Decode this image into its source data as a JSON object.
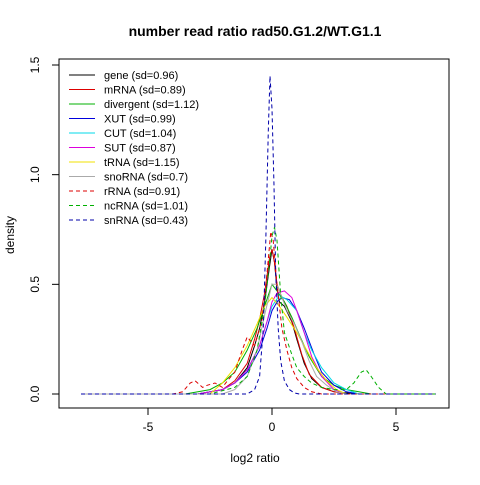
{
  "chart_data": {
    "type": "line",
    "title": "number read ratio rad50.G1.2/WT.G1.1",
    "xlabel": "log2 ratio",
    "ylabel": "density",
    "xlim": [
      -8,
      7
    ],
    "ylim": [
      0,
      1.5
    ],
    "xticks": [
      -5,
      0,
      5
    ],
    "xtick_labels": [
      "-5",
      "0",
      "5"
    ],
    "yticks": [
      0.0,
      0.5,
      1.0,
      1.5
    ],
    "ytick_labels": [
      "0.0",
      "0.5",
      "1.0",
      "1.5"
    ],
    "grid": false,
    "legend_position": "top-left",
    "series": [
      {
        "name": "gene (sd=0.96)",
        "color": "#000000",
        "dashed": false,
        "x": [
          -3.0,
          -2.0,
          -1.5,
          -1.0,
          -0.7,
          -0.5,
          -0.3,
          -0.1,
          0.0,
          0.1,
          0.2,
          0.3,
          0.5,
          0.8,
          1.0,
          1.3,
          1.6,
          2.0,
          2.5,
          3.0,
          3.5
        ],
        "y": [
          0.0,
          0.02,
          0.05,
          0.12,
          0.22,
          0.3,
          0.42,
          0.58,
          0.66,
          0.6,
          0.48,
          0.42,
          0.4,
          0.33,
          0.25,
          0.14,
          0.07,
          0.03,
          0.01,
          0.005,
          0.0
        ]
      },
      {
        "name": "mRNA (sd=0.89)",
        "color": "#dd0000",
        "dashed": false,
        "x": [
          -3.0,
          -2.0,
          -1.5,
          -1.0,
          -0.7,
          -0.5,
          -0.3,
          -0.1,
          0.0,
          0.1,
          0.2,
          0.4,
          0.6,
          0.9,
          1.2,
          1.5,
          2.0,
          2.5,
          3.0
        ],
        "y": [
          0.0,
          0.02,
          0.06,
          0.14,
          0.25,
          0.34,
          0.46,
          0.62,
          0.66,
          0.6,
          0.5,
          0.44,
          0.4,
          0.3,
          0.18,
          0.09,
          0.03,
          0.01,
          0.0
        ]
      },
      {
        "name": "divergent (sd=1.12)",
        "color": "#00b000",
        "dashed": false,
        "x": [
          -3.5,
          -2.5,
          -2.0,
          -1.5,
          -1.0,
          -0.6,
          -0.3,
          0.0,
          0.2,
          0.5,
          0.8,
          1.1,
          1.5,
          2.0,
          2.5,
          3.0,
          3.5,
          4.0
        ],
        "y": [
          0.0,
          0.02,
          0.05,
          0.1,
          0.2,
          0.3,
          0.4,
          0.5,
          0.47,
          0.42,
          0.35,
          0.27,
          0.17,
          0.08,
          0.04,
          0.02,
          0.01,
          0.0
        ]
      },
      {
        "name": "XUT (sd=0.99)",
        "color": "#0000dd",
        "dashed": false,
        "x": [
          -3.0,
          -2.0,
          -1.5,
          -1.0,
          -0.5,
          -0.2,
          0.0,
          0.2,
          0.4,
          0.7,
          1.0,
          1.3,
          1.7,
          2.0,
          2.5,
          3.0,
          3.5
        ],
        "y": [
          0.0,
          0.02,
          0.05,
          0.1,
          0.2,
          0.3,
          0.38,
          0.42,
          0.44,
          0.43,
          0.38,
          0.3,
          0.18,
          0.1,
          0.04,
          0.01,
          0.0
        ]
      },
      {
        "name": "CUT (sd=1.04)",
        "color": "#00d8e8",
        "dashed": false,
        "x": [
          -3.0,
          -2.0,
          -1.5,
          -1.0,
          -0.5,
          -0.2,
          0.0,
          0.3,
          0.6,
          1.0,
          1.3,
          1.6,
          2.0,
          2.5,
          3.0,
          3.5
        ],
        "y": [
          0.0,
          0.02,
          0.05,
          0.11,
          0.22,
          0.33,
          0.4,
          0.45,
          0.43,
          0.38,
          0.28,
          0.2,
          0.12,
          0.05,
          0.02,
          0.0
        ]
      },
      {
        "name": "SUT (sd=0.87)",
        "color": "#dd00dd",
        "dashed": false,
        "x": [
          -3.0,
          -2.0,
          -1.5,
          -1.0,
          -0.5,
          -0.2,
          0.0,
          0.2,
          0.5,
          0.8,
          1.0,
          1.3,
          1.6,
          2.0,
          2.5,
          3.0
        ],
        "y": [
          0.0,
          0.02,
          0.05,
          0.11,
          0.22,
          0.33,
          0.42,
          0.46,
          0.47,
          0.44,
          0.38,
          0.28,
          0.17,
          0.08,
          0.02,
          0.0
        ]
      },
      {
        "name": "tRNA (sd=1.15)",
        "color": "#f0e000",
        "dashed": false,
        "x": [
          -2.5,
          -2.0,
          -1.5,
          -1.0,
          -0.6,
          -0.3,
          0.0,
          0.3,
          0.6,
          1.0,
          1.4,
          1.8,
          2.2,
          2.6,
          3.0
        ],
        "y": [
          0.0,
          0.05,
          0.12,
          0.22,
          0.32,
          0.4,
          0.44,
          0.4,
          0.35,
          0.28,
          0.2,
          0.12,
          0.06,
          0.02,
          0.0
        ]
      },
      {
        "name": "snoRNA (sd=0.7)",
        "color": "#aaaaaa",
        "dashed": false,
        "x": [
          -2.0,
          -1.5,
          -1.0,
          -0.6,
          -0.3,
          0.0,
          0.2,
          0.4,
          0.6,
          0.9,
          1.2,
          1.5,
          1.8,
          2.2,
          2.6,
          3.0
        ],
        "y": [
          0.0,
          0.02,
          0.08,
          0.2,
          0.36,
          0.5,
          0.5,
          0.44,
          0.38,
          0.32,
          0.24,
          0.15,
          0.08,
          0.04,
          0.01,
          0.0
        ]
      },
      {
        "name": "rRNA (sd=0.91)",
        "color": "#dd0000",
        "dashed": true,
        "x": [
          -4.0,
          -3.6,
          -3.3,
          -3.1,
          -2.8,
          -2.6,
          -2.3,
          -2.0,
          -1.8,
          -1.5,
          -1.2,
          -1.0,
          -0.7,
          -0.4,
          -0.2,
          -0.05,
          0.05,
          0.2,
          0.4,
          0.6,
          0.8,
          1.0,
          1.3,
          1.6,
          2.0
        ],
        "y": [
          0.0,
          0.01,
          0.05,
          0.06,
          0.03,
          0.04,
          0.05,
          0.03,
          0.06,
          0.1,
          0.2,
          0.26,
          0.22,
          0.34,
          0.55,
          0.74,
          0.7,
          0.5,
          0.3,
          0.2,
          0.12,
          0.07,
          0.03,
          0.01,
          0.0
        ]
      },
      {
        "name": "ncRNA (sd=1.01)",
        "color": "#00b000",
        "dashed": true,
        "x": [
          -2.5,
          -1.5,
          -1.0,
          -0.6,
          -0.3,
          -0.1,
          0.0,
          0.1,
          0.2,
          0.35,
          0.5,
          0.8,
          1.0,
          1.3,
          1.6,
          2.0,
          2.5,
          3.0,
          3.3,
          3.6,
          3.8,
          4.0,
          4.3,
          4.6
        ],
        "y": [
          0.0,
          0.03,
          0.08,
          0.2,
          0.4,
          0.6,
          0.72,
          0.76,
          0.7,
          0.45,
          0.28,
          0.18,
          0.12,
          0.08,
          0.05,
          0.03,
          0.02,
          0.02,
          0.05,
          0.1,
          0.11,
          0.08,
          0.03,
          0.0
        ]
      },
      {
        "name": "snRNA (sd=0.43)",
        "color": "#0000aa",
        "dashed": true,
        "x": [
          -1.0,
          -0.7,
          -0.5,
          -0.35,
          -0.25,
          -0.15,
          -0.08,
          0.0,
          0.08,
          0.15,
          0.25,
          0.35,
          0.5,
          0.7,
          0.9,
          1.1
        ],
        "y": [
          0.0,
          0.02,
          0.08,
          0.3,
          0.7,
          1.2,
          1.45,
          1.3,
          0.95,
          0.55,
          0.3,
          0.15,
          0.06,
          0.02,
          0.005,
          0.0
        ]
      }
    ]
  }
}
